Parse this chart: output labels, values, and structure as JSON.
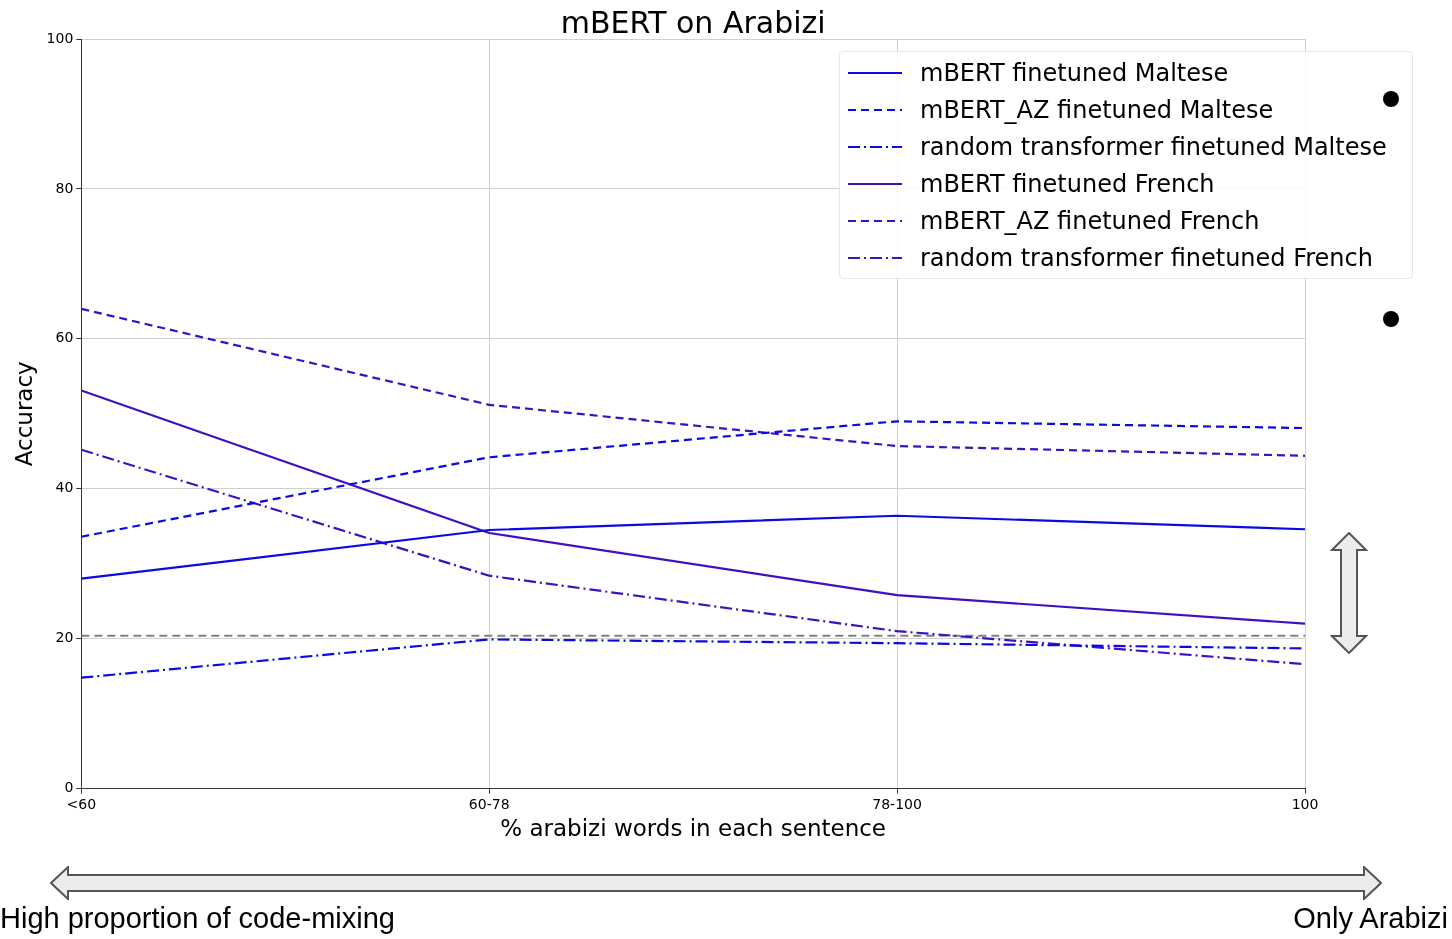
{
  "chart_data": {
    "type": "line",
    "title": "mBERT on Arabizi",
    "xlabel": "% arabizi words in each sentence",
    "ylabel": "Accuracy",
    "categories": [
      "<60",
      "60-78",
      "78-100",
      "100"
    ],
    "ylim": [
      0,
      100
    ],
    "yticks": [
      0,
      20,
      40,
      60,
      80,
      100
    ],
    "grid": true,
    "legend": "top right",
    "marker": "none",
    "series": [
      {
        "name": "mBERT finetuned Maltese",
        "color": "#0a0ae6",
        "line_style": "solid",
        "values": [
          28.0,
          34.5,
          36.4,
          34.6
        ]
      },
      {
        "name": "mBERT_AZ finetuned Maltese",
        "color": "#0a0ae6",
        "line_style": "dashed",
        "values": [
          33.6,
          44.2,
          49.0,
          48.1
        ]
      },
      {
        "name": "random transformer finetuned Maltese",
        "color": "#0a0ae6",
        "line_style": "dashdot",
        "values": [
          14.8,
          19.9,
          19.4,
          18.7
        ]
      },
      {
        "name": "mBERT finetuned French",
        "color": "#3f0fc4",
        "line_style": "solid",
        "values": [
          53.1,
          34.1,
          25.8,
          22.0
        ]
      },
      {
        "name": "mBERT_AZ finetuned French",
        "color": "#3f0fc4",
        "line_style": "dashed",
        "values": [
          64.0,
          51.2,
          45.7,
          44.4
        ]
      },
      {
        "name": "random transformer finetuned French",
        "color": "#3f0fc4",
        "line_style": "dashdot",
        "values": [
          45.2,
          28.4,
          21.0,
          16.6
        ]
      }
    ],
    "ref_lines": [
      {
        "axis": "y",
        "value": 20.4,
        "color": "#808080",
        "line_style": "dashed"
      }
    ],
    "annotations": [
      "High proportion of code-mixing",
      "Only Arabizi"
    ]
  }
}
